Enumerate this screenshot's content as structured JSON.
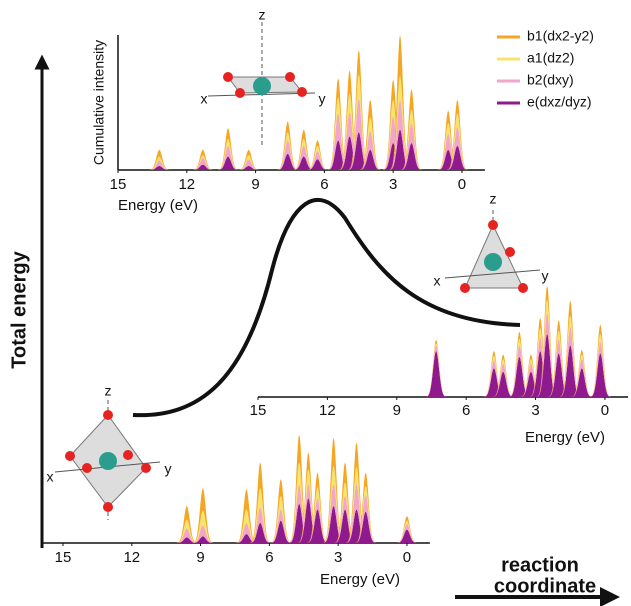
{
  "chart_data": [
    {
      "type": "stacked-peaks",
      "ylabel": "Cumulative intensity",
      "xlabel": "Energy (eV)",
      "x": [
        13.2,
        11.3,
        10.2,
        9.3,
        7.6,
        6.9,
        6.3,
        5.4,
        4.9,
        4.5,
        4.0,
        3.0,
        2.7,
        2.2,
        0.6,
        0.2
      ],
      "series": [
        {
          "name": "b1(dx2-y2)",
          "color": "#f5a623",
          "values": [
            0.05,
            0.04,
            0.08,
            0.04,
            0.08,
            0.07,
            0.04,
            0.14,
            0.17,
            0.18,
            0.13,
            0.15,
            0.3,
            0.15,
            0.09,
            0.1
          ]
        },
        {
          "name": "a1(dz2)",
          "color": "#f8e46a",
          "values": [
            0.03,
            0.02,
            0.05,
            0.03,
            0.06,
            0.05,
            0.04,
            0.12,
            0.14,
            0.18,
            0.1,
            0.12,
            0.18,
            0.1,
            0.08,
            0.1
          ]
        },
        {
          "name": "b2(dxy)",
          "color": "#f2a6cc",
          "values": [
            0.04,
            0.05,
            0.08,
            0.05,
            0.1,
            0.08,
            0.06,
            0.2,
            0.18,
            0.25,
            0.14,
            0.2,
            0.22,
            0.15,
            0.12,
            0.14
          ]
        },
        {
          "name": "e(dxz/dyz)",
          "color": "#8e1a8e",
          "values": [
            0.03,
            0.04,
            0.1,
            0.03,
            0.12,
            0.1,
            0.08,
            0.22,
            0.25,
            0.28,
            0.15,
            0.2,
            0.3,
            0.2,
            0.15,
            0.18
          ]
        }
      ],
      "xlim": [
        15,
        -1
      ],
      "ylim": [
        0,
        1
      ],
      "xticks": [
        15,
        12,
        9,
        6,
        3,
        0
      ]
    },
    {
      "type": "stacked-peaks",
      "xlabel": "Energy (eV)",
      "x": [
        7.3,
        4.8,
        4.4,
        3.7,
        3.2,
        2.8,
        2.5,
        2.0,
        1.5,
        1.0,
        0.2
      ],
      "series": [
        {
          "color": "#f5a623",
          "values": [
            0.03,
            0.04,
            0.04,
            0.06,
            0.04,
            0.09,
            0.12,
            0.09,
            0.13,
            0.04,
            0.08
          ]
        },
        {
          "color": "#f8e46a",
          "values": [
            0.02,
            0.04,
            0.04,
            0.06,
            0.04,
            0.08,
            0.12,
            0.08,
            0.1,
            0.04,
            0.07
          ]
        },
        {
          "color": "#f2a6cc",
          "values": [
            0.05,
            0.07,
            0.07,
            0.1,
            0.07,
            0.12,
            0.18,
            0.12,
            0.16,
            0.08,
            0.1
          ]
        },
        {
          "color": "#8e1a8e",
          "values": [
            0.4,
            0.25,
            0.22,
            0.35,
            0.22,
            0.4,
            0.55,
            0.38,
            0.45,
            0.25,
            0.38
          ]
        }
      ],
      "xlim": [
        15,
        -1
      ],
      "ylim": [
        0,
        1
      ],
      "xticks": [
        15,
        12,
        9,
        6,
        3,
        0
      ]
    },
    {
      "type": "stacked-peaks",
      "xlabel": "Energy (eV)",
      "x": [
        9.6,
        8.9,
        7.0,
        6.4,
        5.5,
        4.7,
        4.3,
        3.9,
        3.2,
        2.7,
        2.2,
        1.8,
        0.0
      ],
      "series": [
        {
          "color": "#f5a623",
          "values": [
            0.12,
            0.2,
            0.18,
            0.23,
            0.15,
            0.25,
            0.15,
            0.13,
            0.25,
            0.18,
            0.22,
            0.12,
            0.04
          ]
        },
        {
          "color": "#f8e46a",
          "values": [
            0.08,
            0.13,
            0.12,
            0.17,
            0.12,
            0.2,
            0.13,
            0.1,
            0.16,
            0.12,
            0.15,
            0.08,
            0.03
          ]
        },
        {
          "color": "#f2a6cc",
          "values": [
            0.08,
            0.1,
            0.1,
            0.14,
            0.1,
            0.17,
            0.13,
            0.1,
            0.2,
            0.12,
            0.23,
            0.15,
            0.05
          ]
        },
        {
          "color": "#8e1a8e",
          "values": [
            0.05,
            0.06,
            0.08,
            0.18,
            0.2,
            0.35,
            0.4,
            0.3,
            0.33,
            0.3,
            0.3,
            0.28,
            0.12
          ]
        }
      ],
      "xlim": [
        15,
        -1
      ],
      "ylim": [
        0,
        1
      ],
      "xticks": [
        15,
        12,
        9,
        6,
        3,
        0
      ]
    }
  ],
  "axes": {
    "y_label": "Total energy",
    "x_label_lines": [
      "reaction",
      "coordinate"
    ]
  },
  "molecules": [
    {
      "labels": [
        "z",
        "x",
        "y"
      ]
    },
    {
      "labels": [
        "z",
        "x",
        "y"
      ]
    },
    {
      "labels": [
        "z",
        "x",
        "y"
      ]
    }
  ]
}
